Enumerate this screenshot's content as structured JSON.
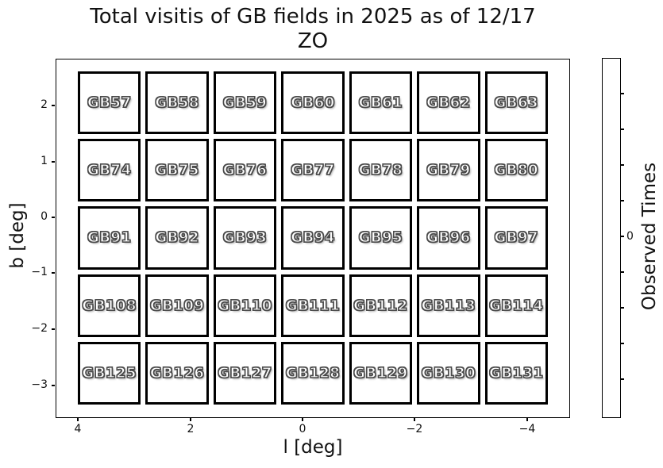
{
  "title": {
    "line1": "Total visitis of GB fields in 2025 as of 12/17",
    "line2": "ZO"
  },
  "axes": {
    "xlabel": "l [deg]",
    "ylabel": "b [deg]",
    "x_tick_labels": [
      "4",
      "2",
      "0",
      "−2",
      "−4"
    ],
    "y_tick_labels": [
      "2",
      "1",
      "0",
      "−1",
      "−2",
      "−3"
    ]
  },
  "grid": {
    "rows": [
      [
        "GB57",
        "GB58",
        "GB59",
        "GB60",
        "GB61",
        "GB62",
        "GB63"
      ],
      [
        "GB74",
        "GB75",
        "GB76",
        "GB77",
        "GB78",
        "GB79",
        "GB80"
      ],
      [
        "GB91",
        "GB92",
        "GB93",
        "GB94",
        "GB95",
        "GB96",
        "GB97"
      ],
      [
        "GB108",
        "GB109",
        "GB110",
        "GB111",
        "GB112",
        "GB113",
        "GB114"
      ],
      [
        "GB125",
        "GB126",
        "GB127",
        "GB128",
        "GB129",
        "GB130",
        "GB131"
      ]
    ]
  },
  "colorbar": {
    "label": "Observed Times",
    "tick_label": "0",
    "unlabeled_tick_count": 9
  },
  "colors": {
    "background": "#ffffff",
    "axis_line": "#000000",
    "cell_border": "#000000",
    "cell_fill": "#ffffff",
    "field_label_fill": "#ffffff",
    "field_label_outline": "#4a4a4a"
  },
  "chart_data": {
    "type": "heatmap",
    "title": "Total visitis of GB fields in 2025 as of 12/17",
    "subtitle": "ZO",
    "xlabel": "l [deg]",
    "ylabel": "b [deg]",
    "x_ticks": [
      4,
      2,
      0,
      -2,
      -4
    ],
    "y_ticks": [
      2,
      1,
      0,
      -1,
      -2,
      -3
    ],
    "x_axis_reversed": true,
    "grid_shape": [
      5,
      7
    ],
    "colorbar_label": "Observed Times",
    "colorbar_center_tick": 0,
    "fields": [
      [
        "GB57",
        "GB58",
        "GB59",
        "GB60",
        "GB61",
        "GB62",
        "GB63"
      ],
      [
        "GB74",
        "GB75",
        "GB76",
        "GB77",
        "GB78",
        "GB79",
        "GB80"
      ],
      [
        "GB91",
        "GB92",
        "GB93",
        "GB94",
        "GB95",
        "GB96",
        "GB97"
      ],
      [
        "GB108",
        "GB109",
        "GB110",
        "GB111",
        "GB112",
        "GB113",
        "GB114"
      ],
      [
        "GB125",
        "GB126",
        "GB127",
        "GB128",
        "GB129",
        "GB130",
        "GB131"
      ]
    ],
    "values": [
      [
        0,
        0,
        0,
        0,
        0,
        0,
        0
      ],
      [
        0,
        0,
        0,
        0,
        0,
        0,
        0
      ],
      [
        0,
        0,
        0,
        0,
        0,
        0,
        0
      ],
      [
        0,
        0,
        0,
        0,
        0,
        0,
        0
      ],
      [
        0,
        0,
        0,
        0,
        0,
        0,
        0
      ]
    ]
  }
}
